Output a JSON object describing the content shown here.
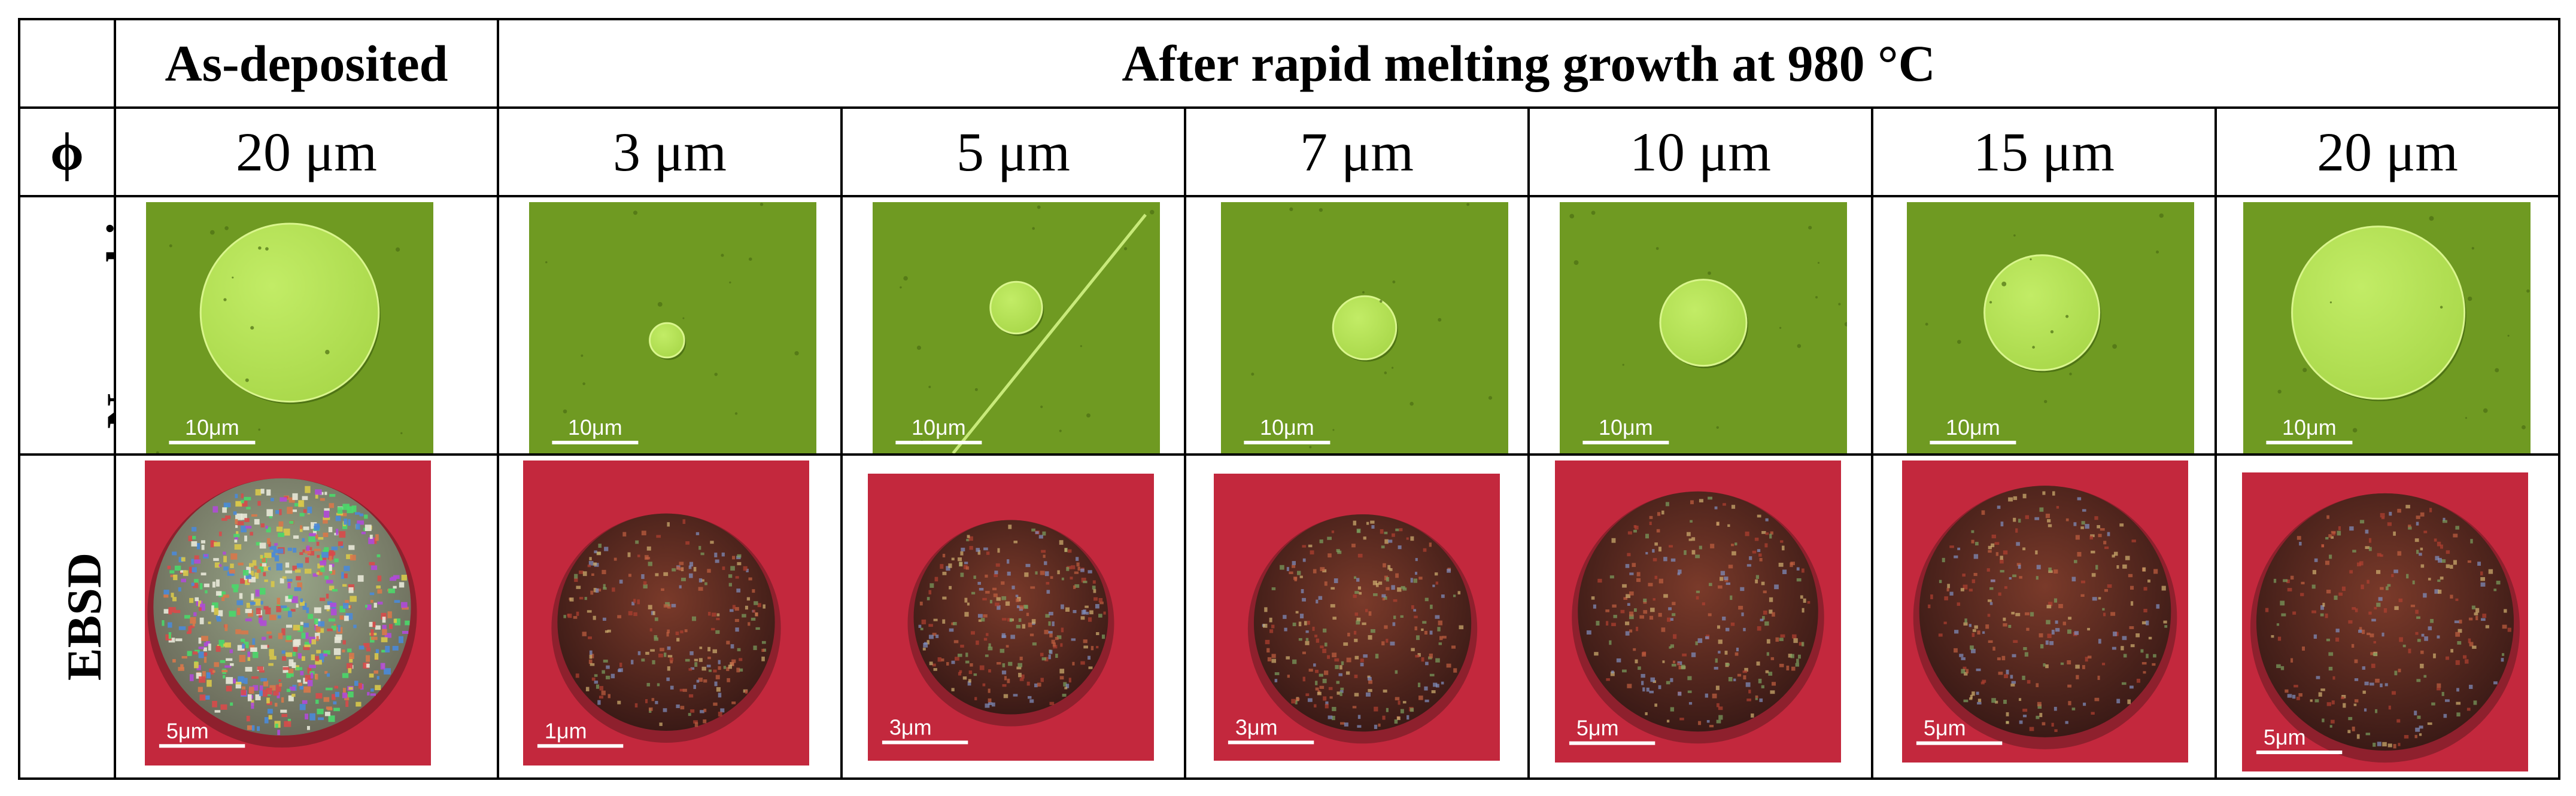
{
  "header": {
    "as_deposited": "As-deposited",
    "after_rmg": "After rapid melting growth at 980 °C"
  },
  "phi_label": "ϕ",
  "diameters": [
    "20 μm",
    "3 μm",
    "5 μm",
    "7 μm",
    "10 μm",
    "15 μm",
    "20 μm"
  ],
  "rows": {
    "nomarski": "Nomarski",
    "ebsd": "EBSD"
  },
  "scale_bars": {
    "nomarski": [
      "10μm",
      "10μm",
      "10μm",
      "10μm",
      "10μm",
      "10μm",
      "10μm"
    ],
    "ebsd": [
      "5μm",
      "1μm",
      "3μm",
      "3μm",
      "5μm",
      "5μm",
      "5μm"
    ]
  },
  "colors": {
    "nomarski_bg": "#6f9a22",
    "nomarski_disk": "#a9d84a",
    "ebsd_bg": "#c3283d",
    "ebsd_disk": "#5a2a22",
    "grid": "#000000"
  }
}
